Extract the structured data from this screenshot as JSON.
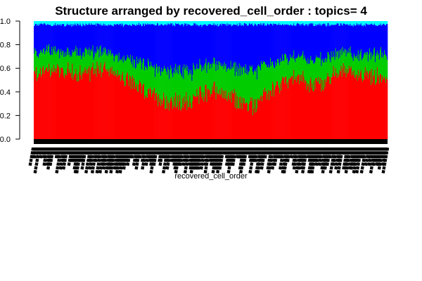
{
  "chart_data": {
    "type": "bar",
    "stacked": true,
    "title": "Structure arranged by recovered_cell_order : topics= 4",
    "xlabel": "recovered_cell_order",
    "ylabel": "",
    "ylim": [
      0,
      1
    ],
    "yticks": [
      "0.0",
      "0.2",
      "0.4",
      "0.6",
      "0.8",
      "1.0"
    ],
    "n_cells": 500,
    "category_label_glyph": "■■■■■■■■",
    "grid": false,
    "legend": "none",
    "series": [
      {
        "color": "#FF0000",
        "profile": [
          0.56,
          0.58,
          0.6,
          0.58,
          0.55,
          0.56,
          0.6,
          0.57,
          0.54,
          0.5,
          0.45,
          0.4,
          0.35,
          0.32,
          0.3,
          0.33,
          0.38,
          0.42,
          0.4,
          0.35,
          0.3,
          0.28,
          0.35,
          0.42,
          0.48,
          0.52,
          0.5,
          0.46,
          0.48,
          0.55,
          0.58,
          0.57,
          0.55,
          0.52,
          0.5
        ]
      },
      {
        "color": "#00CC00",
        "profile": [
          0.18,
          0.17,
          0.15,
          0.16,
          0.18,
          0.17,
          0.15,
          0.16,
          0.17,
          0.18,
          0.2,
          0.23,
          0.25,
          0.26,
          0.28,
          0.26,
          0.24,
          0.22,
          0.23,
          0.26,
          0.29,
          0.3,
          0.26,
          0.22,
          0.2,
          0.18,
          0.19,
          0.21,
          0.2,
          0.17,
          0.15,
          0.15,
          0.17,
          0.19,
          0.2
        ]
      },
      {
        "color": "#0000FF",
        "profile": [
          0.23,
          0.22,
          0.22,
          0.23,
          0.24,
          0.24,
          0.22,
          0.24,
          0.26,
          0.29,
          0.32,
          0.34,
          0.37,
          0.39,
          0.39,
          0.38,
          0.35,
          0.33,
          0.34,
          0.36,
          0.38,
          0.39,
          0.36,
          0.33,
          0.29,
          0.27,
          0.28,
          0.3,
          0.29,
          0.25,
          0.24,
          0.25,
          0.25,
          0.26,
          0.27
        ]
      },
      {
        "color": "#00FFFF",
        "profile": [
          0.03
        ]
      }
    ]
  }
}
